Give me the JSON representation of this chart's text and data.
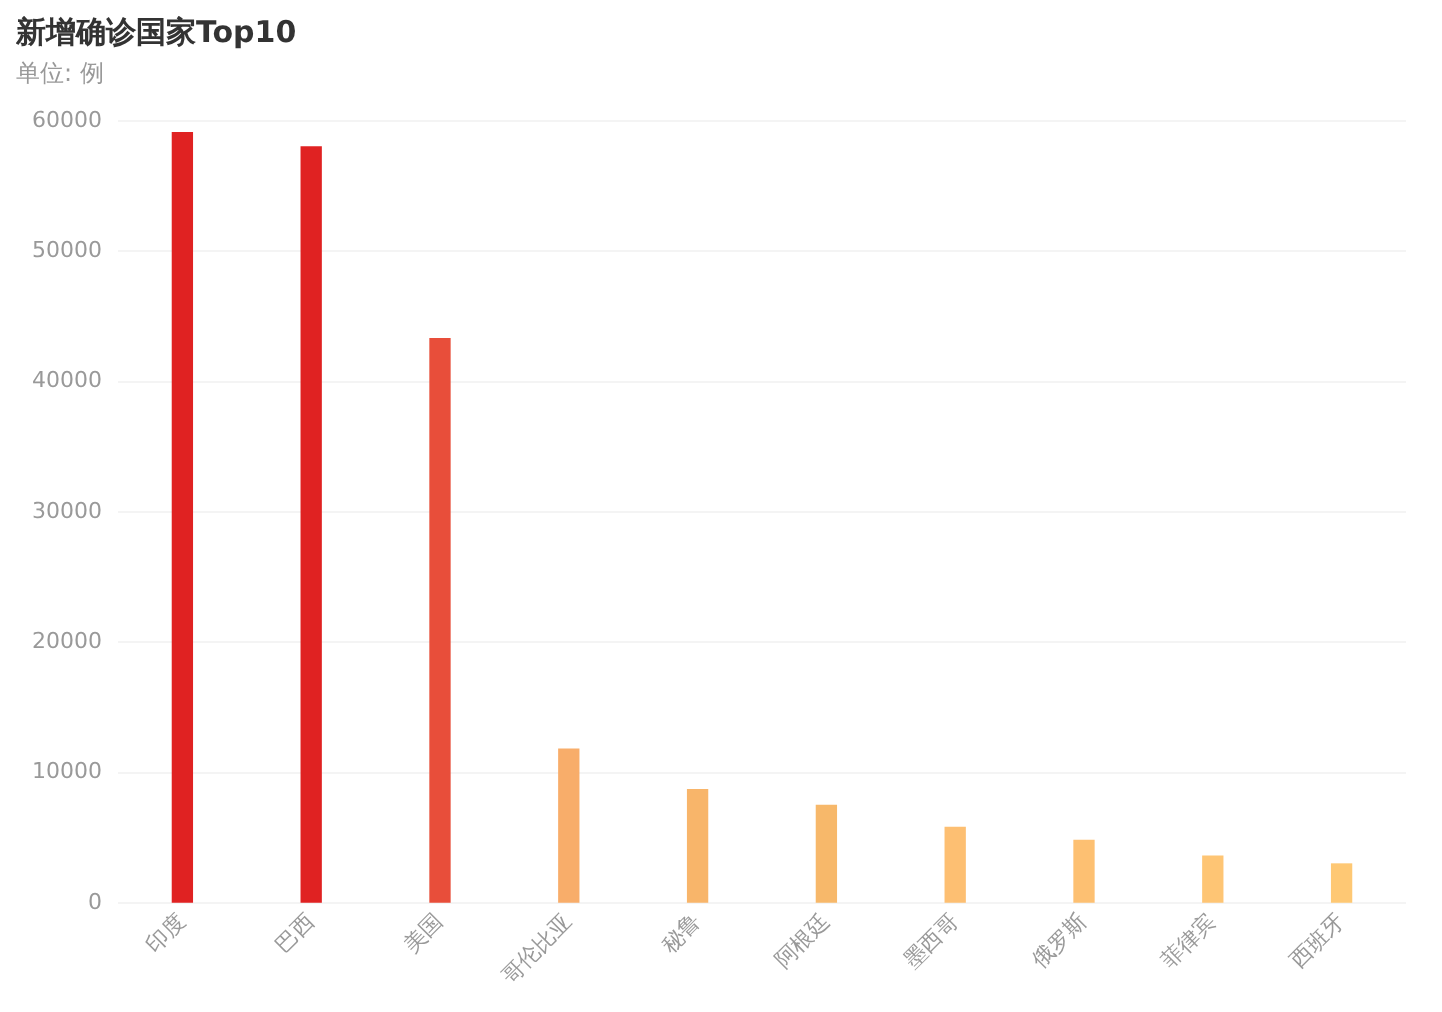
{
  "chart_data": {
    "type": "bar",
    "title": "新增确诊国家Top10",
    "subtitle": "单位: 例",
    "categories": [
      "印度",
      "巴西",
      "美国",
      "哥伦比亚",
      "秘鲁",
      "阿根廷",
      "墨西哥",
      "俄罗斯",
      "菲律宾",
      "西班牙"
    ],
    "values": [
      59100,
      58000,
      43300,
      11800,
      8700,
      7500,
      5800,
      4800,
      3600,
      3000
    ],
    "colors": [
      "#e02222",
      "#e02222",
      "#e84e3a",
      "#f8ad6a",
      "#f8b56a",
      "#f7b86a",
      "#fdbf72",
      "#fdc072",
      "#fec574",
      "#fec874"
    ],
    "ylim": [
      0,
      60000
    ],
    "yticks": [
      0,
      10000,
      20000,
      30000,
      40000,
      50000,
      60000
    ],
    "grid": "y",
    "legend": false
  }
}
